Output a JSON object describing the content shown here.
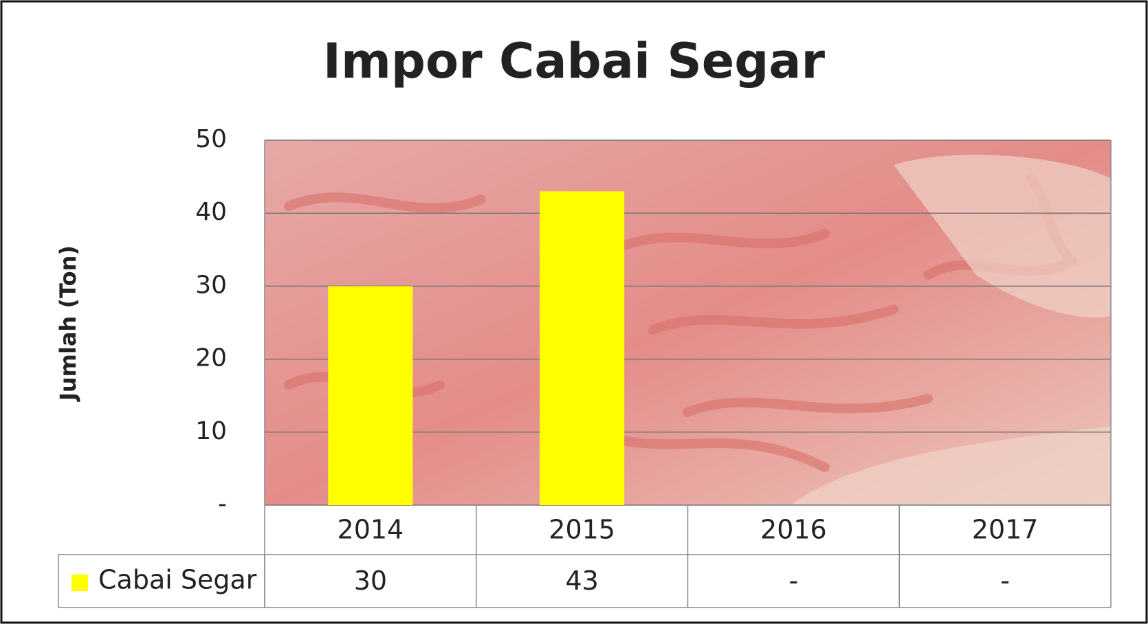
{
  "chart_data": {
    "type": "bar",
    "title": "Impor Cabai Segar",
    "ylabel": "Jumlah (Ton)",
    "categories": [
      "2014",
      "2015",
      "2016",
      "2017"
    ],
    "series": [
      {
        "name": "Cabai Segar",
        "color": "#ffff00",
        "values": [
          30,
          43,
          null,
          null
        ],
        "value_labels": [
          "30",
          "43",
          "-",
          "-"
        ]
      }
    ],
    "ylim": [
      0,
      50
    ],
    "yticks": [
      {
        "value": 0,
        "label": "-"
      },
      10,
      20,
      30,
      40,
      50
    ],
    "grid": true
  }
}
